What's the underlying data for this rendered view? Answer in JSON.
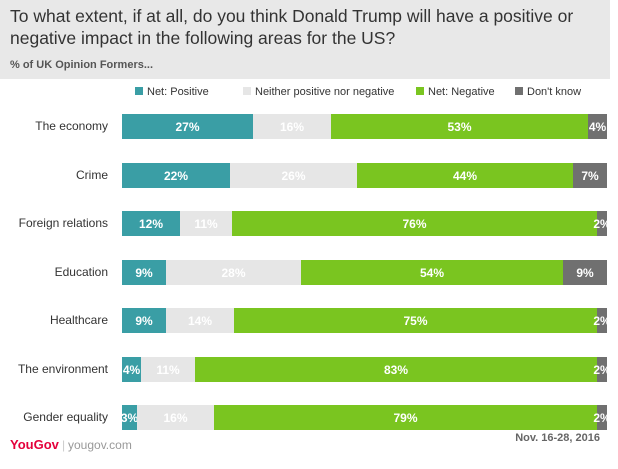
{
  "header": {
    "title": "To what extent, if at all, do you think Donald Trump will have a positive or negative impact in the following areas for the US?",
    "subtitle": "% of UK Opinion Formers..."
  },
  "footer": {
    "brand": "YouGov",
    "url": "yougov.com",
    "date": "Nov. 16-28, 2016"
  },
  "chart_data": {
    "type": "bar",
    "orientation": "horizontal",
    "stacked": true,
    "legend_position": "top",
    "categories": [
      "The economy",
      "Crime",
      "Foreign relations",
      "Education",
      "Healthcare",
      "The environment",
      "Gender equality"
    ],
    "series": [
      {
        "name": "Net: Positive",
        "color": "#3a9ea5",
        "text_color": "#ffffff",
        "values": [
          27,
          22,
          12,
          9,
          9,
          4,
          3
        ]
      },
      {
        "name": "Neither positive nor negative",
        "color": "#e6e6e6",
        "text_color": "#ffffff",
        "values": [
          16,
          26,
          11,
          28,
          14,
          11,
          16
        ]
      },
      {
        "name": "Net: Negative",
        "color": "#7ac520",
        "text_color": "#ffffff",
        "values": [
          53,
          44,
          76,
          54,
          75,
          83,
          79
        ]
      },
      {
        "name": "Don't know",
        "color": "#707070",
        "text_color": "#ffffff",
        "values": [
          4,
          7,
          2,
          9,
          2,
          2,
          2
        ]
      }
    ],
    "value_suffix": "%",
    "xlim": [
      0,
      100
    ]
  }
}
